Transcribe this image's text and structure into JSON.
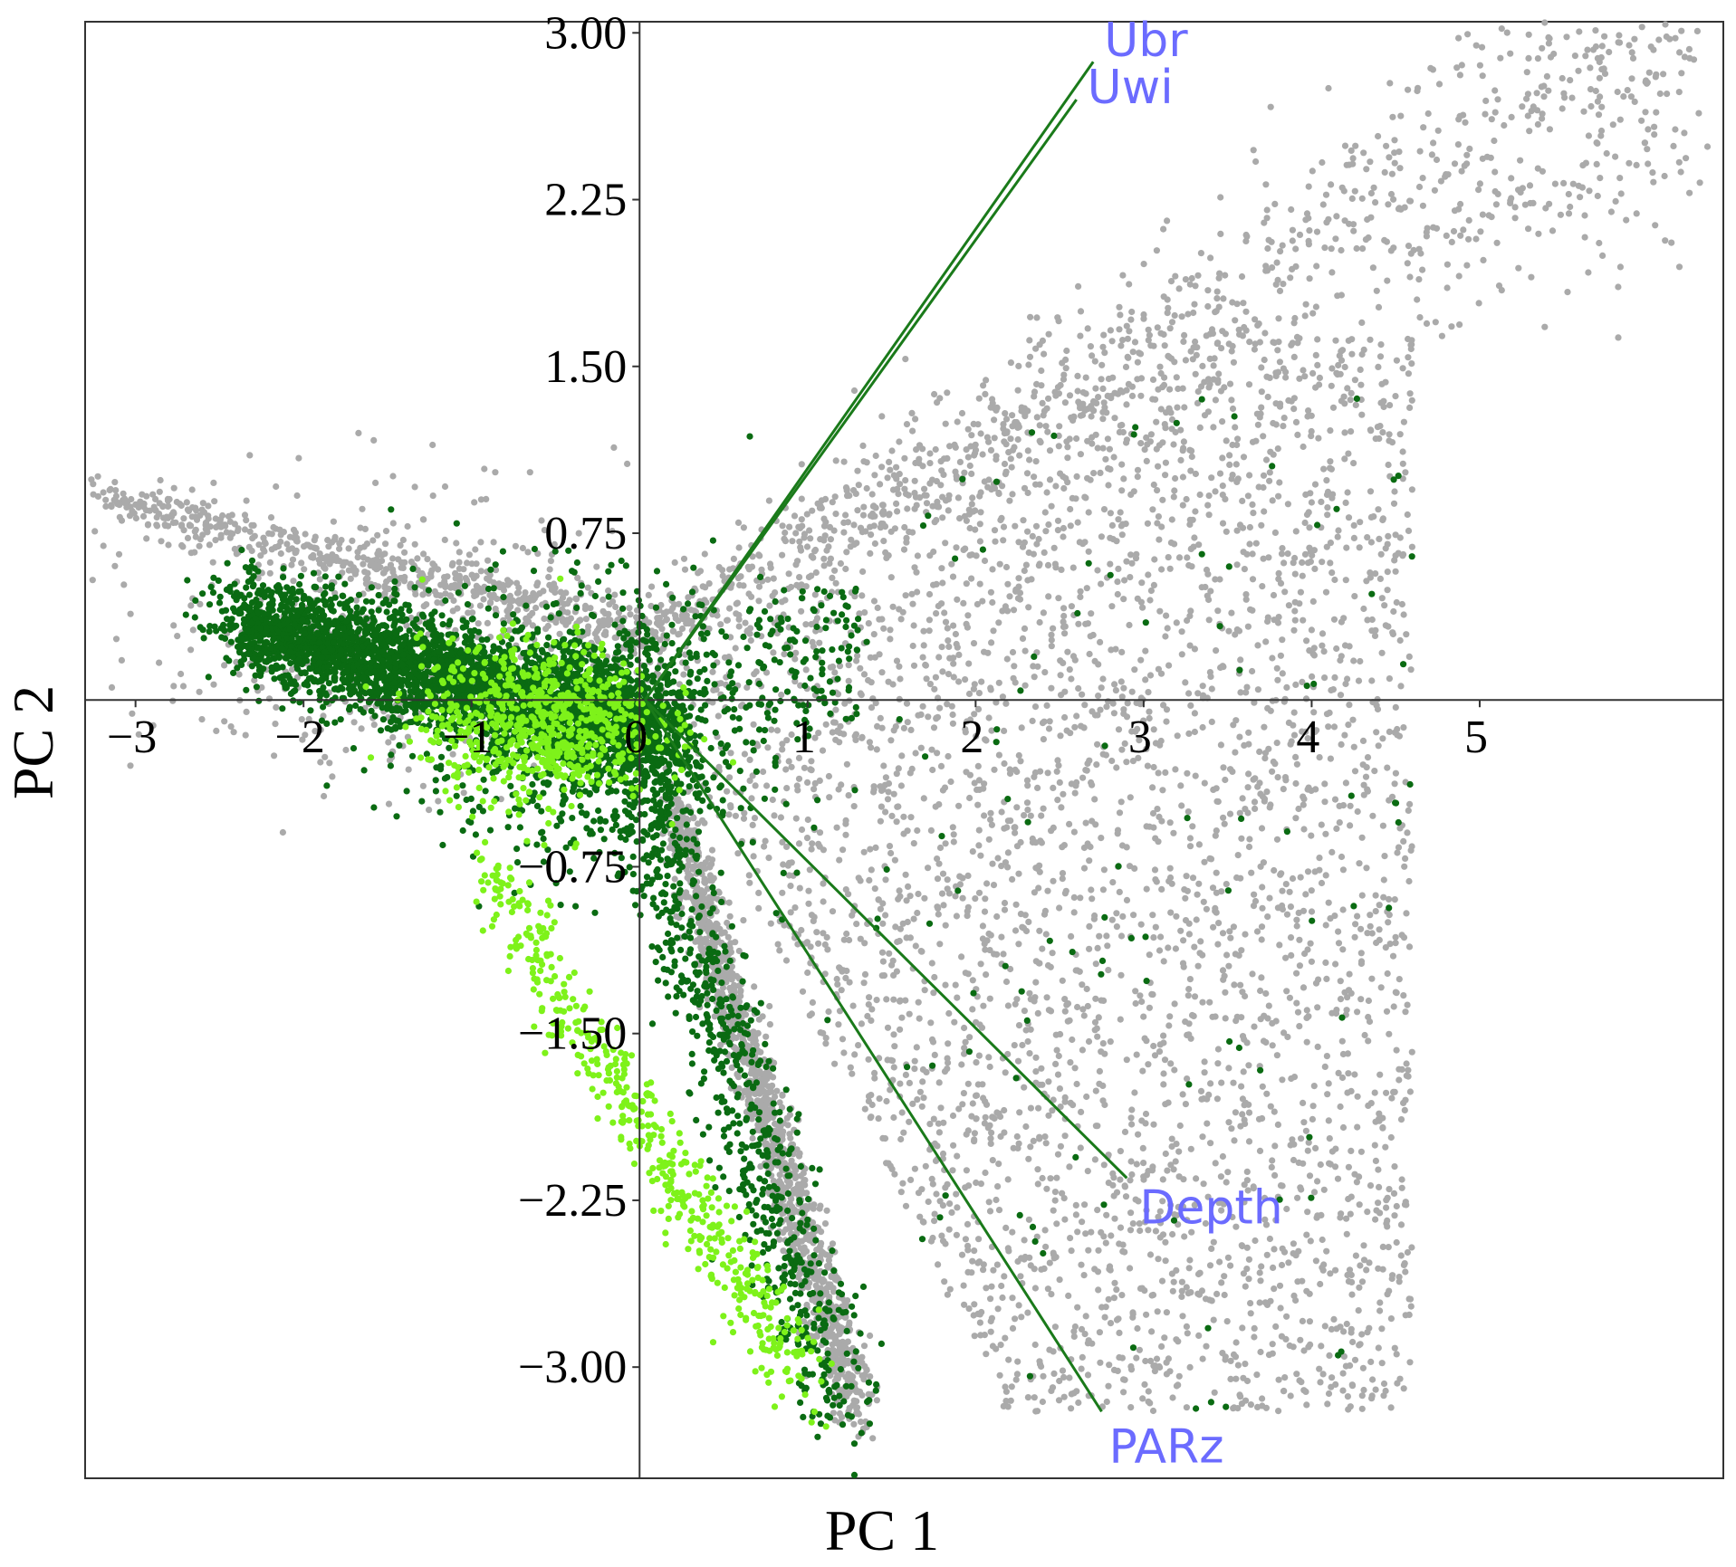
{
  "chart_data": {
    "type": "scatter",
    "title": "",
    "xlabel": "PC 1",
    "ylabel": "PC 2",
    "xlim": [
      -3.3,
      6.45
    ],
    "ylim": [
      -3.5,
      3.05
    ],
    "x_ticks": [
      -3,
      -2,
      -1,
      0,
      1,
      2,
      3,
      4,
      5
    ],
    "x_tick_labels": [
      "−3",
      "−2",
      "−1",
      "0",
      "1",
      "2",
      "3",
      "4",
      "5"
    ],
    "y_ticks": [
      3.0,
      2.25,
      1.5,
      0.75,
      -0.75,
      -1.5,
      -2.25,
      -3.0
    ],
    "y_tick_labels": [
      "3.00",
      "2.25",
      "1.50",
      "0.75",
      "−0.75",
      "−1.50",
      "−2.25",
      "−3.00"
    ],
    "grid": false,
    "colors": {
      "gray": "#aaaaaa",
      "dark_green": "#0a6b12",
      "light_green": "#7ef21a",
      "vector": "#1a7a1a",
      "vector_label": "#6b6bff"
    },
    "series": [
      {
        "color": "gray",
        "point_count": 7000,
        "summary": "Cloud of points forming a V shape: an upper arm from about (-3.2, 0.9) through (0, 0.3) rising to (6.3, 2.8); a broad wedge filling PC1 0 to 4.5 and PC2 -3.2 to 1.6; a lower arm descending to about (1.2, -3.2)."
      },
      {
        "color": "dark_green",
        "point_count": 5500,
        "summary": "Dense cluster centred near (-0.8, 0.0) extending left to (-2.4, 0.4) and down to (0, -3.2); sparse points scattered over the gray wedge."
      },
      {
        "color": "light_green",
        "point_count": 1200,
        "summary": "Cluster around (-0.6, -0.1) plus a tail descending from (-0.9, -0.8) to (1.0, -3.1)."
      }
    ],
    "vectors": [
      {
        "label": "Ubr",
        "x": 2.7,
        "y": 2.87
      },
      {
        "label": "Uwi",
        "x": 2.6,
        "y": 2.7
      },
      {
        "label": "Depth",
        "x": 2.9,
        "y": -2.15
      },
      {
        "label": "PARz",
        "x": 2.75,
        "y": -3.2
      }
    ]
  }
}
